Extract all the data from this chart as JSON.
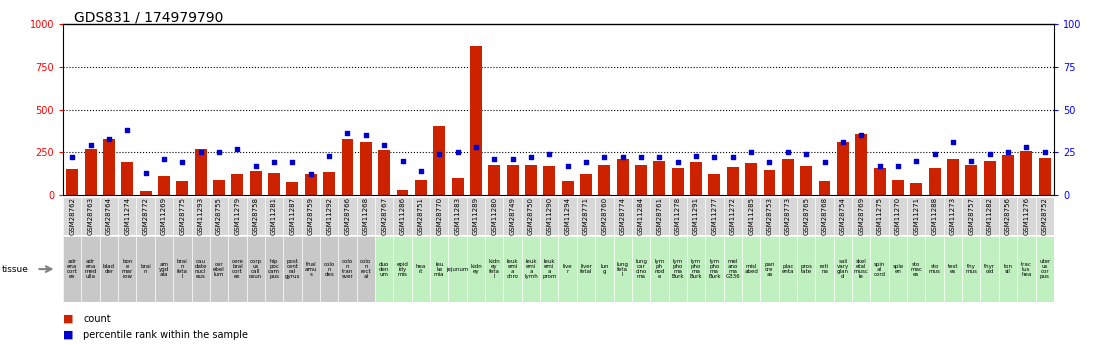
{
  "title": "GDS831 / 174979790",
  "gsm_ids": [
    "GSM28762",
    "GSM28763",
    "GSM28764",
    "GSM11274",
    "GSM28772",
    "GSM11269",
    "GSM28775",
    "GSM11293",
    "GSM28755",
    "GSM11279",
    "GSM28758",
    "GSM11281",
    "GSM11287",
    "GSM28759",
    "GSM11292",
    "GSM28766",
    "GSM11268",
    "GSM28767",
    "GSM11286",
    "GSM28751",
    "GSM28770",
    "GSM11283",
    "GSM11289",
    "GSM11280",
    "GSM28749",
    "GSM28750",
    "GSM11290",
    "GSM11294",
    "GSM28771",
    "GSM28760",
    "GSM28774",
    "GSM11284",
    "GSM28761",
    "GSM11278",
    "GSM11291",
    "GSM11277",
    "GSM11272",
    "GSM11285",
    "GSM28753",
    "GSM28773",
    "GSM28765",
    "GSM28768",
    "GSM28754",
    "GSM28769",
    "GSM11275",
    "GSM11270",
    "GSM11271",
    "GSM11288",
    "GSM11273",
    "GSM28757",
    "GSM11282",
    "GSM28756",
    "GSM11276",
    "GSM28752"
  ],
  "tissue_labels": [
    "adr\nena\ncort\nex",
    "adr\nena\nmed\nulla",
    "blad\nder",
    "bon\ne\nmar\nrow",
    "brai\nn",
    "am\nygd\nala",
    "brai\nn\nfeta\nl",
    "cau\ndate\nnucl\neus",
    "cer\nebel\nlum",
    "cere\nbral\ncort\nex",
    "corp\nus\ncall\nosun",
    "hip\npoc\ncam\npus",
    "post\ncent\nral\ngyrus",
    "thal\namu\ns",
    "colo\nn\ndes",
    "colo\nn\ntran\nsver",
    "colo\nn\nrect\nal",
    "duo\nden\num",
    "epid\nidy\nmis",
    "hea\nrt",
    "leu\nke\nmia",
    "jejunum",
    "kidn\ney",
    "kidn\ney\nfeta\nl",
    "leuk\nemi\na\nchro",
    "leuk\nemi\na\nlymh",
    "leuk\nemi\na\nprom",
    "live\nr",
    "liver\nfetal",
    "lun\ng",
    "lung\nfeta\nl",
    "lung\ncar\ncino\nma",
    "lym\nph\nnod\ne",
    "lym\npho\nma\nBurk",
    "lym\npho\nma\nBurk",
    "lym\npho\nma\nBurk",
    "mel\nano\nma\nG336",
    "misl\nabed",
    "pan\ncre\nas",
    "plac\nenta",
    "pros\ntate",
    "reti\nna",
    "sali\nvary\nglan\nd",
    "skel\netal\nmusc\nle",
    "spin\nal\ncord",
    "sple\nen",
    "sto\nmac\nes",
    "sto\nmus",
    "test\nes",
    "thy\nmus",
    "thyr\noid",
    "ton\nsil",
    "trac\ntus\nhea",
    "uter\nus\ncor\npus"
  ],
  "tissue_gray": [
    true,
    true,
    true,
    true,
    true,
    true,
    true,
    true,
    true,
    true,
    true,
    true,
    true,
    true,
    true,
    true,
    true,
    false,
    false,
    false,
    false,
    false,
    false,
    false,
    false,
    false,
    false,
    false,
    false,
    false,
    false,
    false,
    false,
    false,
    false,
    false,
    false,
    false,
    false,
    false,
    false,
    false,
    false,
    false,
    false,
    false,
    false,
    false,
    false,
    false,
    false,
    false,
    false,
    false
  ],
  "counts": [
    150,
    270,
    330,
    190,
    25,
    110,
    80,
    270,
    90,
    125,
    140,
    130,
    75,
    125,
    135,
    325,
    310,
    265,
    30,
    90,
    405,
    100,
    870,
    175,
    175,
    175,
    170,
    80,
    120,
    175,
    210,
    175,
    200,
    160,
    195,
    125,
    165,
    185,
    145,
    210,
    170,
    80,
    310,
    355,
    155,
    90,
    70,
    155,
    210,
    175,
    200,
    235,
    260,
    215
  ],
  "percentiles_pct": [
    22,
    29,
    33,
    38,
    13,
    21,
    19,
    25,
    25,
    27,
    17,
    19,
    19,
    12,
    23,
    36,
    35,
    29,
    20,
    14,
    24,
    25,
    28,
    21,
    21,
    22,
    24,
    17,
    19,
    22,
    22,
    22,
    22,
    19,
    23,
    22,
    22,
    25,
    19,
    25,
    24,
    19,
    31,
    35,
    17,
    17,
    20,
    24,
    31,
    20,
    24,
    25,
    28,
    25
  ],
  "bar_color": "#cc2200",
  "dot_color": "#0000cc",
  "gray_color": "#c8c8c8",
  "green_color": "#c0f0c0",
  "gsm_box_color": "#d8d8d8",
  "ylim_left": [
    0,
    1000
  ],
  "ylim_right": [
    0,
    100
  ],
  "yticks_left": [
    0,
    250,
    500,
    750,
    1000
  ],
  "yticks_right": [
    0,
    25,
    50,
    75,
    100
  ],
  "hlines": [
    250,
    500,
    750
  ]
}
